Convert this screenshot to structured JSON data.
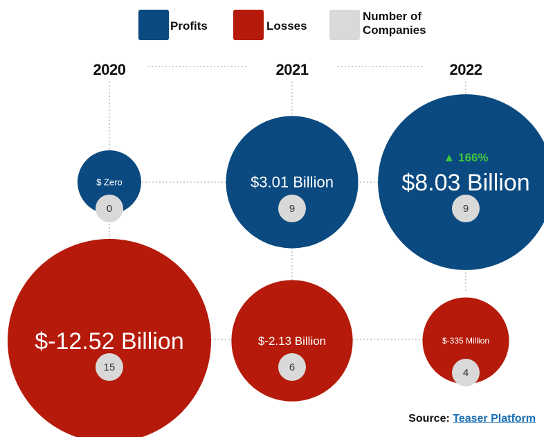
{
  "legend": {
    "profits_label": "Profits",
    "losses_label": "Losses",
    "companies_label": "Number of Companies"
  },
  "source": {
    "prefix": "Source:",
    "link_text": "Teaser Platform"
  },
  "colors": {
    "profits": "#0b4a80",
    "losses": "#b51a0a",
    "companies": "#d9d9d9",
    "growth": "#3ec43e"
  },
  "chart_data": {
    "type": "bubble",
    "categories": [
      "2020",
      "2021",
      "2022"
    ],
    "series": [
      {
        "name": "Profits",
        "values": [
          0,
          3.01,
          8.03
        ],
        "labels": [
          "$ Zero",
          "$3.01 Billion",
          "$8.03 Billion"
        ],
        "companies": [
          0,
          9,
          9
        ]
      },
      {
        "name": "Losses",
        "values": [
          -12.52,
          -2.13,
          -0.335
        ],
        "labels": [
          "$-12.52 Billion",
          "$-2.13 Billion",
          "$-335 Million"
        ],
        "companies": [
          15,
          6,
          4
        ]
      }
    ],
    "annotations": [
      {
        "category": "2022",
        "series": "Profits",
        "text": "▲ 166%"
      }
    ]
  }
}
